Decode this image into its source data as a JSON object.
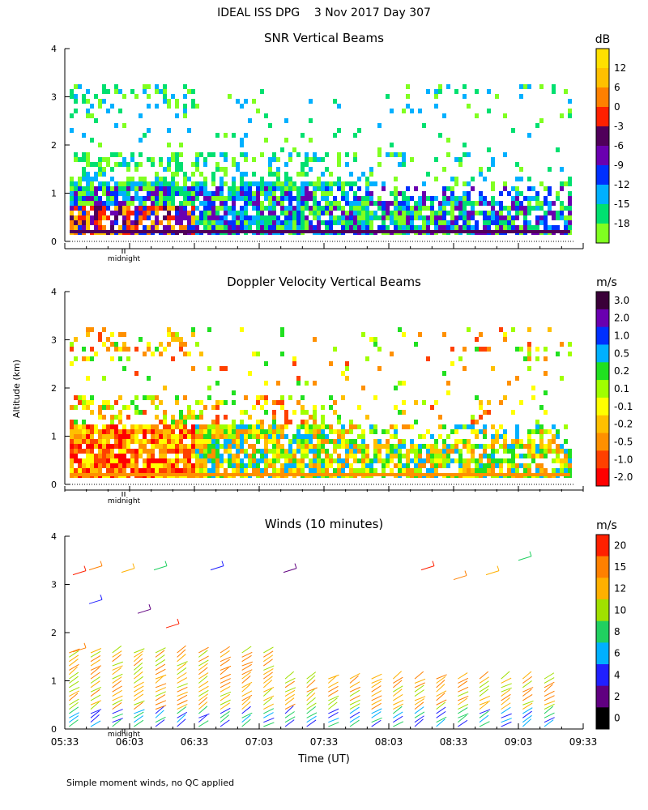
{
  "page": {
    "title": "IDEAL ISS DPG    3 Nov 2017 Day 307",
    "y_axis_label": "Altitude (km)",
    "x_axis_label": "Time (UT)",
    "footnote": "Simple moment winds, no QC applied"
  },
  "chart_data": [
    {
      "id": "snr",
      "type": "heatmap",
      "title": "SNR Vertical Beams",
      "ylabel": "Altitude (km)",
      "ylim": [
        0,
        4
      ],
      "y_ticks": [
        "0",
        "1",
        "2",
        "3",
        "4"
      ],
      "x_ticks": [],
      "midnight_label": "midnight",
      "colorbar": {
        "unit": "dB",
        "labels": [
          "12",
          "6",
          "0",
          "-3",
          "-6",
          "-9",
          "-12",
          "-15",
          "-18"
        ],
        "colors": [
          "#ffc000",
          "#ff8000",
          "#ff2000",
          "#50005a",
          "#6a00b0",
          "#0030ff",
          "#00b0ff",
          "#00e070",
          "#80ff20"
        ]
      },
      "colorbar_top_color": "#ffe000",
      "summary": "Strongest echoes (0 to 12 dB) below 0.8 km from 05:33 to 06:33; broadly -9 to -18 dB up to about 1.8 km throughout; patchy returns near 3 km."
    },
    {
      "id": "doppler",
      "type": "heatmap",
      "title": "Doppler Velocity Vertical Beams",
      "ylabel": "Altitude (km)",
      "ylim": [
        0,
        4
      ],
      "y_ticks": [
        "0",
        "1",
        "2",
        "3",
        "4"
      ],
      "x_ticks": [],
      "midnight_label": "midnight",
      "colorbar": {
        "unit": "m/s",
        "labels": [
          "3.0",
          "2.0",
          "1.0",
          "0.5",
          "0.2",
          "0.1",
          "-0.1",
          "-0.2",
          "-0.5",
          "-1.0",
          "-2.0"
        ],
        "colors": [
          "#3a0038",
          "#6a00b0",
          "#0030ff",
          "#00b0ff",
          "#20e020",
          "#a0ff00",
          "#ffff00",
          "#ffc000",
          "#ff9000",
          "#ff4000",
          "#ff0000"
        ]
      },
      "summary": "Mostly downward motion (-0.2 to -2.0 m/s) below 1.3 km before 06:33; mixed yellow and green values later, with sparse echoes near 3 km."
    },
    {
      "id": "winds",
      "type": "scatter",
      "title": "Winds (10 minutes)",
      "ylabel": "Altitude (km)",
      "xlabel": "Time (UT)",
      "ylim": [
        0,
        4
      ],
      "y_ticks": [
        "0",
        "1",
        "2",
        "3",
        "4"
      ],
      "x_ticks": [
        "05:33",
        "06:03",
        "06:33",
        "07:03",
        "07:33",
        "08:03",
        "08:33",
        "09:03",
        "09:33"
      ],
      "midnight_label": "midnight",
      "colorbar": {
        "unit": "m/s",
        "labels": [
          "20",
          "15",
          "12",
          "10",
          "8",
          "6",
          "4",
          "2",
          "0"
        ],
        "colors": [
          "#ff2000",
          "#ff8000",
          "#ffb000",
          "#a0e000",
          "#20d060",
          "#00b0ff",
          "#2020ff",
          "#600080",
          "#000000"
        ]
      },
      "barb_times": [
        "05:35",
        "05:45",
        "05:55",
        "06:05",
        "06:15",
        "06:25",
        "06:35",
        "06:45",
        "06:55",
        "07:05",
        "07:15",
        "07:25",
        "07:35",
        "07:45",
        "07:55",
        "08:05",
        "08:15",
        "08:25",
        "08:35",
        "08:45",
        "08:55",
        "09:05",
        "09:15"
      ],
      "summary": "Wind barbs at 10 minute intervals; mostly 10 to 15 m/s below 1.5 km, weaker 2 to 8 m/s near the surface."
    }
  ]
}
